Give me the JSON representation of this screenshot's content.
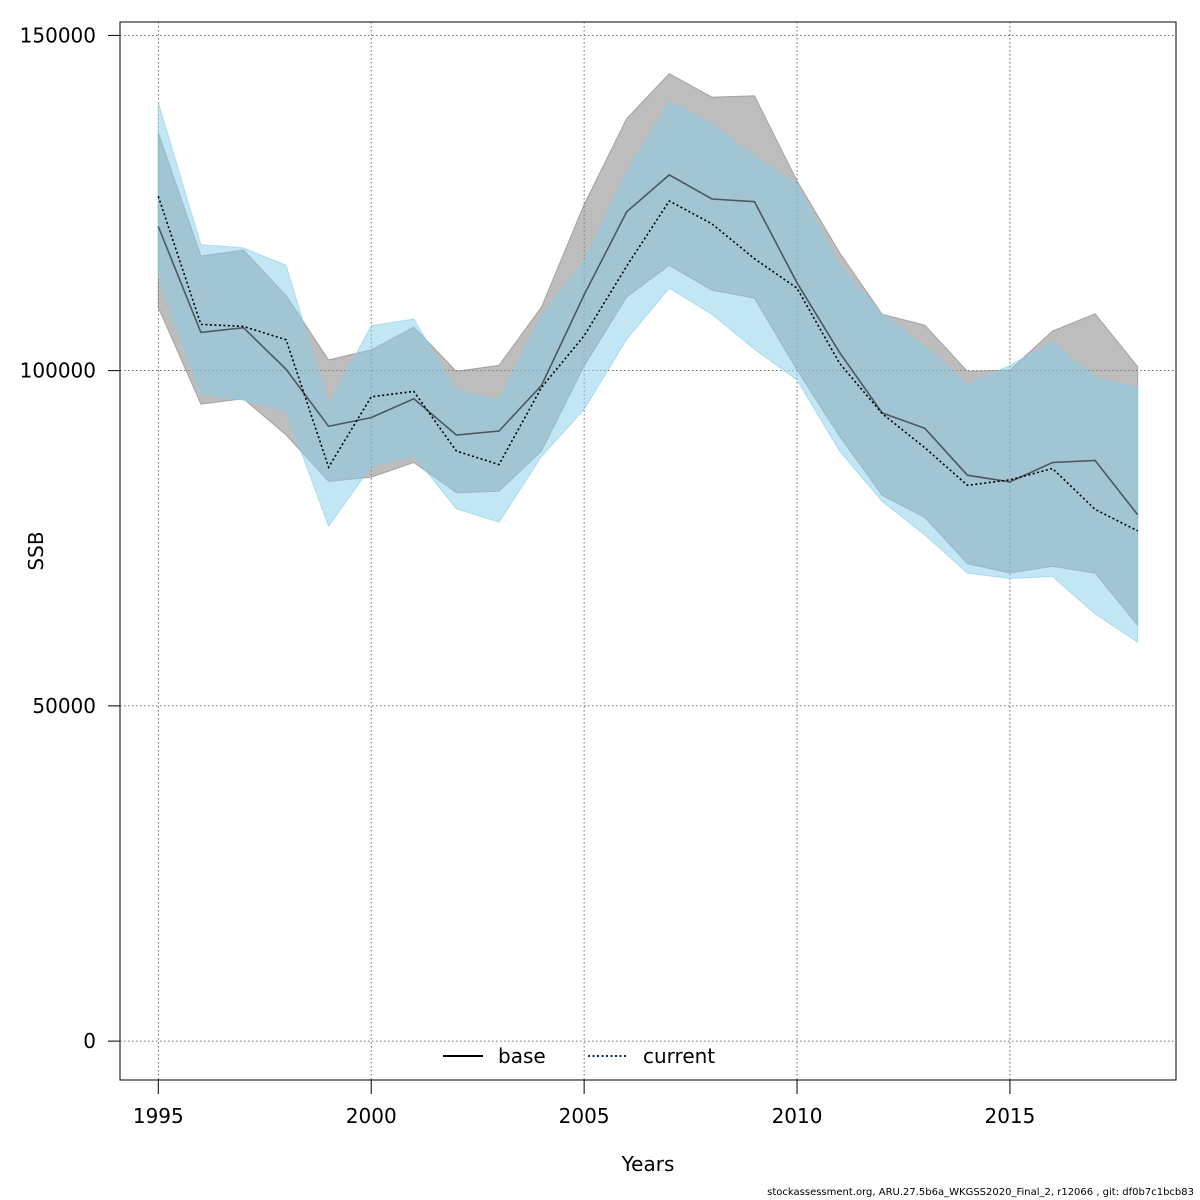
{
  "chart_data": {
    "type": "area",
    "title": "",
    "xlabel": "Years",
    "ylabel": "SSB",
    "xlim": [
      1994.1,
      2018.9
    ],
    "ylim": [
      -5800,
      152000
    ],
    "x_ticks": [
      1995,
      2000,
      2005,
      2010,
      2015
    ],
    "y_ticks": [
      0,
      50000,
      100000,
      150000
    ],
    "x_tick_labels": [
      "1995",
      "2000",
      "2005",
      "2010",
      "2015"
    ],
    "y_tick_labels": [
      "0",
      "50000",
      "100000",
      "150000"
    ],
    "grid": true,
    "legend_position": "bottom-center",
    "x": [
      1995,
      1996,
      1997,
      1998,
      1999,
      2000,
      2001,
      2002,
      2003,
      2004,
      2005,
      2006,
      2007,
      2008,
      2009,
      2010,
      2011,
      2012,
      2013,
      2014,
      2015,
      2016,
      2017,
      2018
    ],
    "series": [
      {
        "name": "base",
        "line_style": "solid",
        "line_color": "#000000",
        "band_color": "#808080",
        "values": [
          121500,
          105700,
          106400,
          100200,
          91700,
          93000,
          95800,
          90400,
          91000,
          97800,
          111300,
          123700,
          129200,
          125600,
          125200,
          113100,
          102700,
          93700,
          91400,
          84400,
          83400,
          86300,
          86600,
          78500
        ],
        "lower": [
          109400,
          95000,
          95800,
          90400,
          83500,
          84100,
          86300,
          81800,
          82000,
          88000,
          100700,
          111000,
          115700,
          112000,
          110800,
          100100,
          90200,
          81400,
          78100,
          71200,
          69800,
          70800,
          69800,
          62000
        ],
        "upper": [
          135500,
          117100,
          118000,
          111200,
          101600,
          103100,
          106500,
          99900,
          100800,
          109500,
          124800,
          137600,
          144300,
          140800,
          141000,
          128300,
          117600,
          108400,
          106800,
          99900,
          100100,
          105900,
          108500,
          100600
        ]
      },
      {
        "name": "current",
        "line_style": "dotted",
        "line_color": "#00304a",
        "band_color": "#87ceeb",
        "values": [
          126000,
          106900,
          106600,
          104600,
          85600,
          96100,
          96900,
          88000,
          86000,
          97500,
          105200,
          115600,
          125300,
          121900,
          116700,
          112300,
          101100,
          93600,
          88500,
          82900,
          83700,
          85400,
          79300,
          76100
        ],
        "lower": [
          114000,
          96500,
          95600,
          94000,
          76800,
          85700,
          87300,
          79400,
          77400,
          87200,
          94200,
          104700,
          112300,
          108400,
          103200,
          98600,
          88000,
          80500,
          75500,
          69800,
          69000,
          69300,
          63700,
          59500
        ],
        "upper": [
          140000,
          118800,
          118300,
          115700,
          94800,
          106700,
          107700,
          97000,
          95700,
          108100,
          116300,
          129500,
          140100,
          136800,
          131800,
          127800,
          115700,
          108500,
          103600,
          97900,
          100800,
          104200,
          99000,
          97500
        ]
      }
    ]
  },
  "footer_text": "stockassessment.org, ARU.27.5b6a_WKGSS2020_Final_2, r12066 , git: df0b7c1bcb83"
}
